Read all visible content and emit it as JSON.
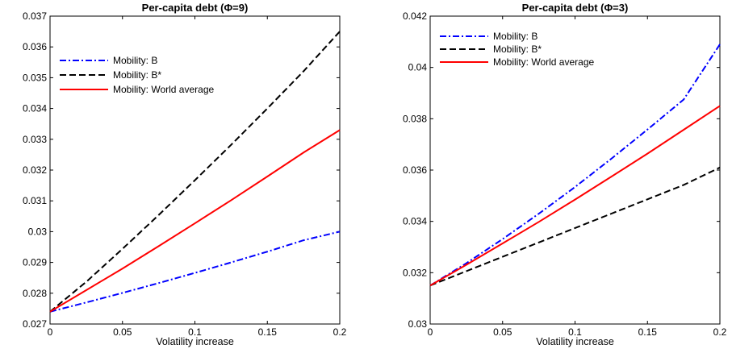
{
  "chart_data": [
    {
      "type": "line",
      "title": "Per-capita debt (Φ=9)",
      "xlabel": "Volatility increase",
      "ylabel": "",
      "xlim": [
        0,
        0.2
      ],
      "ylim": [
        0.027,
        0.037
      ],
      "xticks": [
        "0",
        "0.05",
        "0.1",
        "0.15",
        "0.2"
      ],
      "yticks": [
        "0.027",
        "0.028",
        "0.029",
        "0.03",
        "0.031",
        "0.032",
        "0.033",
        "0.034",
        "0.035",
        "0.036",
        "0.037"
      ],
      "grid": false,
      "legend_position": "top-left",
      "x": [
        0,
        0.025,
        0.05,
        0.075,
        0.1,
        0.125,
        0.15,
        0.175,
        0.2
      ],
      "series": [
        {
          "name": "Mobility: B",
          "color": "#0000ff",
          "style": "dash-dot",
          "values": [
            0.0274,
            0.0277,
            0.02801,
            0.02833,
            0.02866,
            0.029,
            0.02935,
            0.02972,
            0.03
          ]
        },
        {
          "name": "Mobility: B*",
          "color": "#000000",
          "style": "dashed",
          "values": [
            0.0274,
            0.02837,
            0.02944,
            0.03054,
            0.03167,
            0.03282,
            0.034,
            0.03521,
            0.0365
          ]
        },
        {
          "name": "Mobility: World average",
          "color": "#ff0000",
          "style": "solid",
          "values": [
            0.0274,
            0.0281,
            0.0288,
            0.02953,
            0.03027,
            0.03102,
            0.03179,
            0.03257,
            0.0333
          ]
        }
      ]
    },
    {
      "type": "line",
      "title": "Per-capita debt (Φ=3)",
      "xlabel": "Volatility increase",
      "ylabel": "",
      "xlim": [
        0,
        0.2
      ],
      "ylim": [
        0.03,
        0.042
      ],
      "xticks": [
        "0",
        "0.05",
        "0.1",
        "0.15",
        "0.2"
      ],
      "yticks": [
        "0.03",
        "0.032",
        "0.034",
        "0.036",
        "0.038",
        "0.04",
        "0.042"
      ],
      "grid": false,
      "legend_position": "top-left",
      "x": [
        0,
        0.025,
        0.05,
        0.075,
        0.1,
        0.125,
        0.15,
        0.175,
        0.2
      ],
      "series": [
        {
          "name": "Mobility: B",
          "color": "#0000ff",
          "style": "dash-dot",
          "values": [
            0.0315,
            0.03237,
            0.03331,
            0.0343,
            0.03534,
            0.03644,
            0.03758,
            0.03875,
            0.0409
          ]
        },
        {
          "name": "Mobility: B*",
          "color": "#000000",
          "style": "dashed",
          "values": [
            0.0315,
            0.03206,
            0.03262,
            0.03318,
            0.03374,
            0.0343,
            0.03486,
            0.03542,
            0.0361
          ]
        },
        {
          "name": "Mobility: World average",
          "color": "#ff0000",
          "style": "solid",
          "values": [
            0.0315,
            0.03231,
            0.03314,
            0.03398,
            0.03485,
            0.03574,
            0.03664,
            0.03757,
            0.0385
          ]
        }
      ]
    }
  ]
}
